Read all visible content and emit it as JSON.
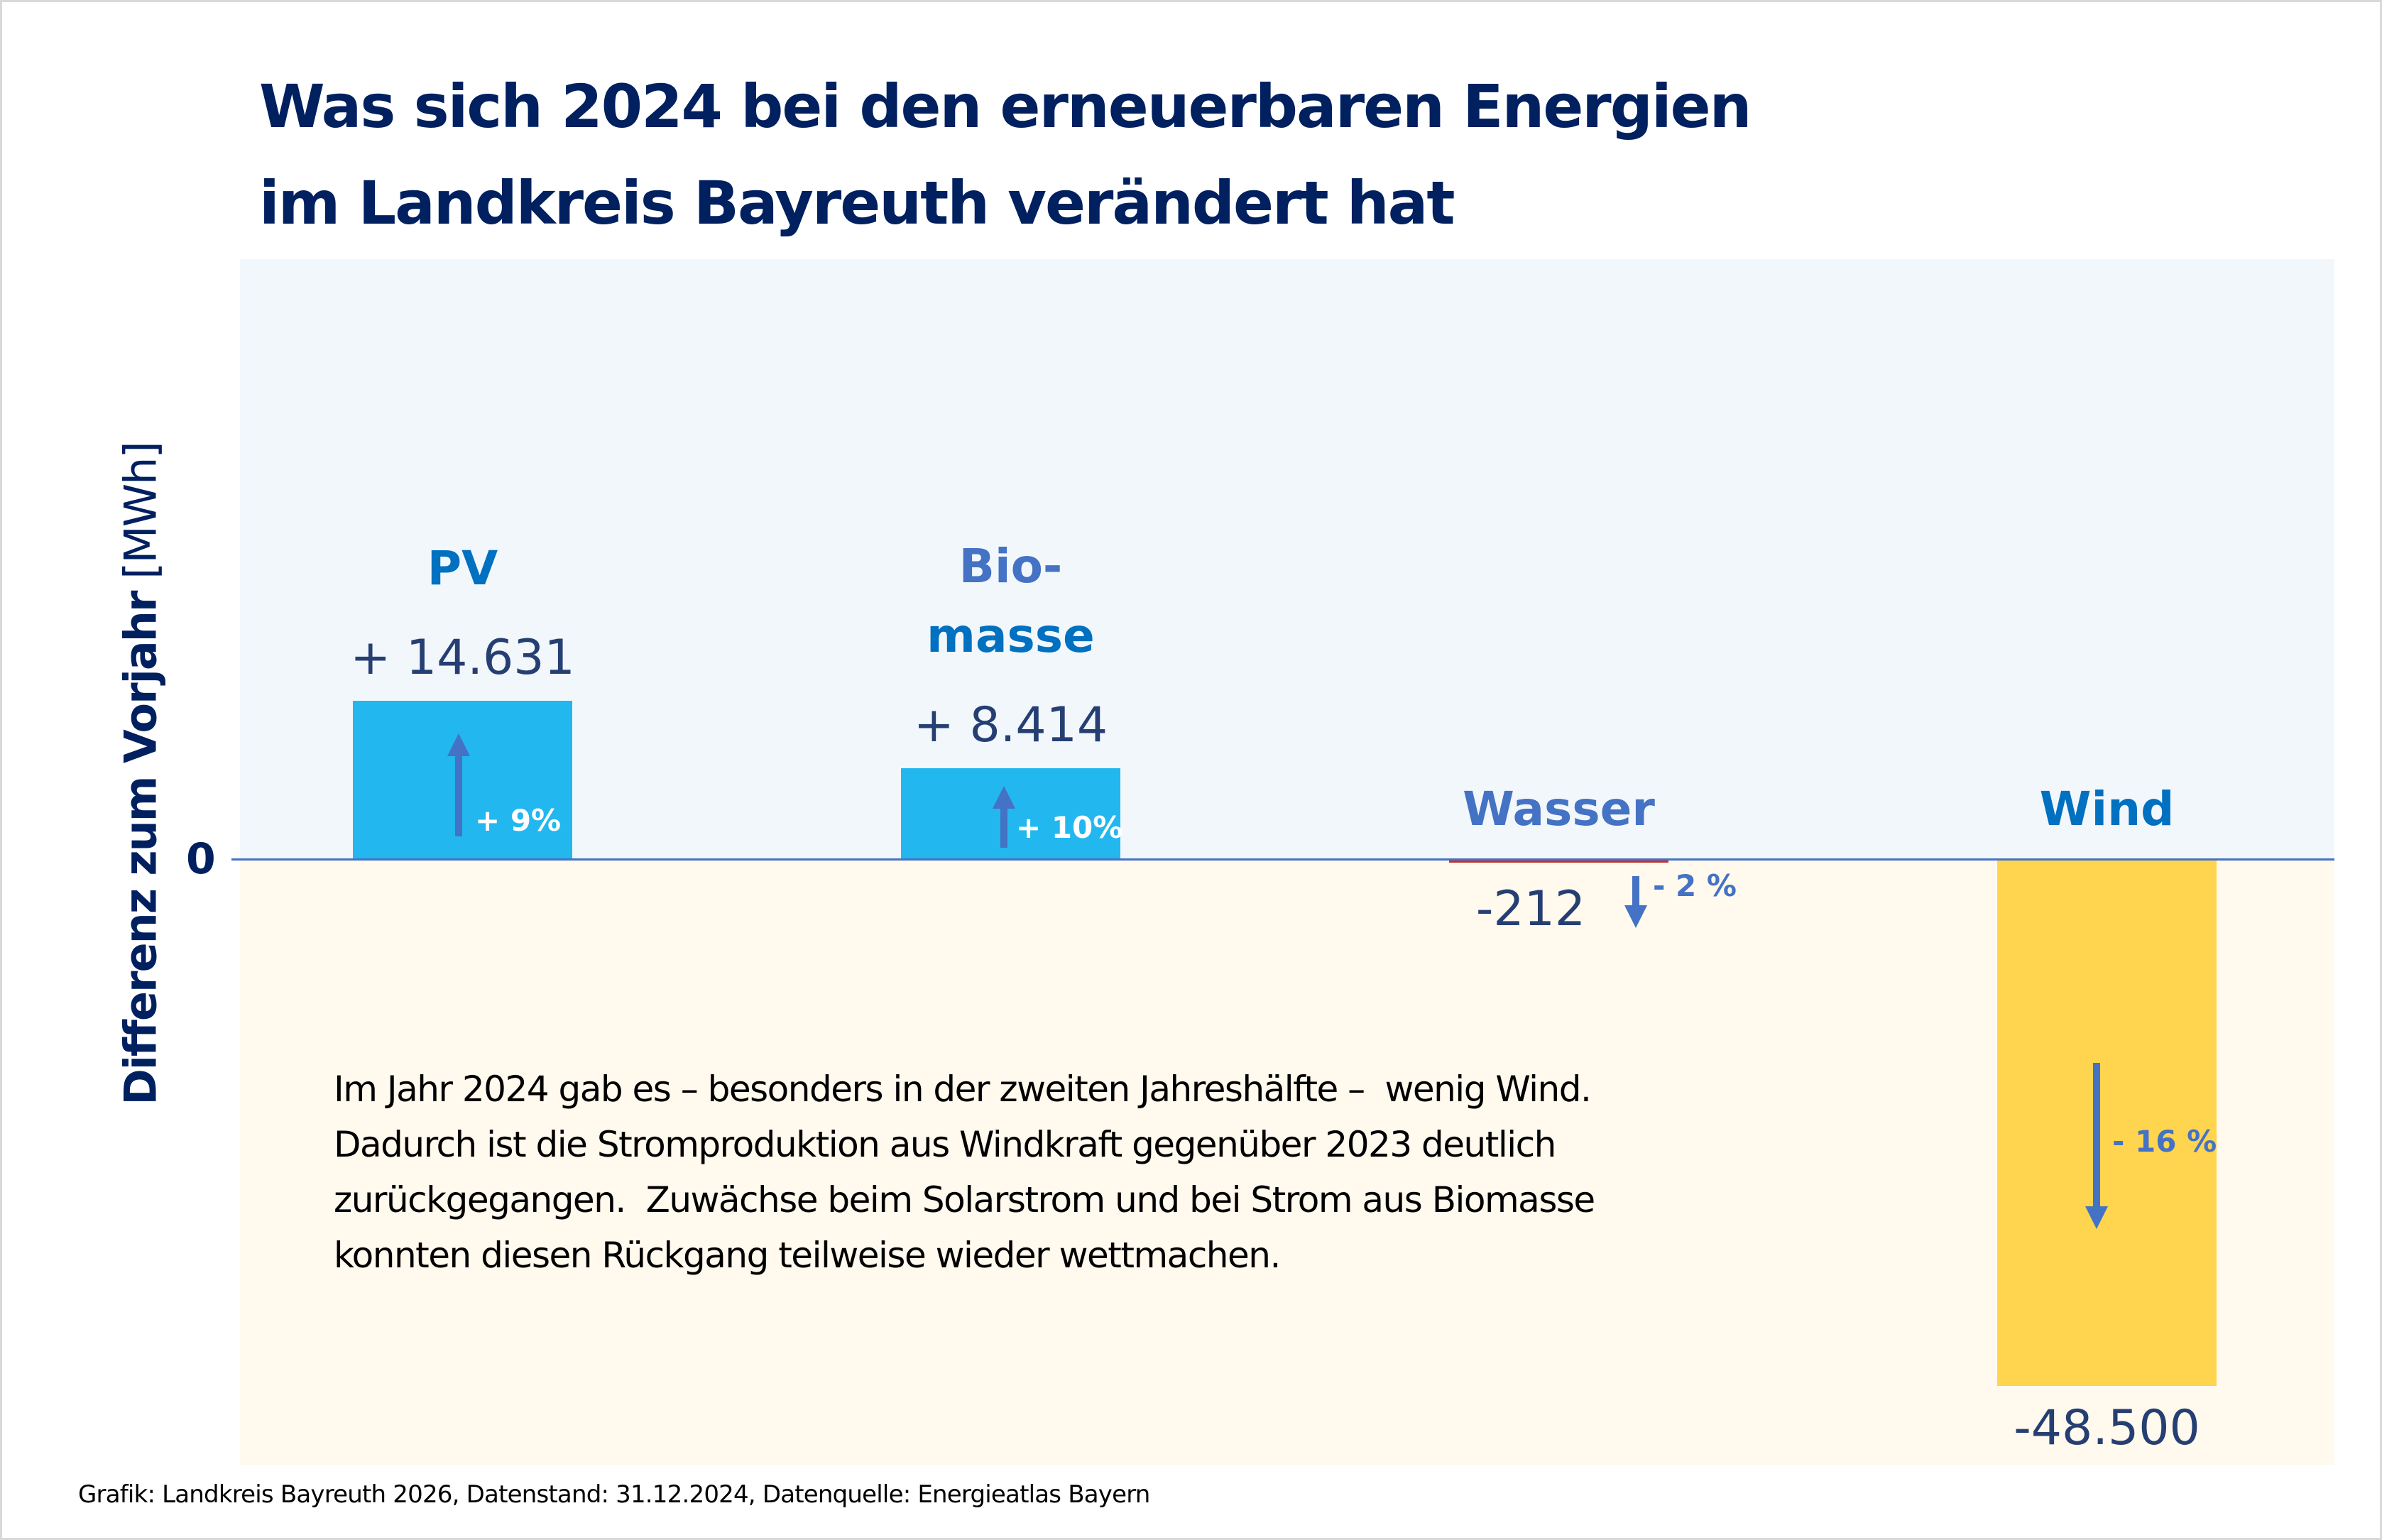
{
  "title": {
    "line1": "Was sich 2024 bei den erneuerbaren Energien",
    "line2": "im Landkreis Bayreuth verändert hat"
  },
  "chart_data": {
    "type": "bar",
    "title": "Was sich 2024 bei den erneuerbaren Energien im Landkreis Bayreuth verändert hat",
    "xlabel": "",
    "ylabel": "Differenz zum Vorjahr [MWh]",
    "ylabel_bold_part": "Differenz zum Vorjahr",
    "ylabel_unit_part": " [MWh]",
    "zero_tick_label": "0",
    "ylim": [
      -54000,
      55000
    ],
    "grid": false,
    "legend": "none",
    "categories": [
      "PV",
      "Biomasse",
      "Wasser",
      "Wind"
    ],
    "values": [
      14631,
      8414,
      -212,
      -48500
    ],
    "value_labels": [
      "+ 14.631",
      "+ 8.414",
      "-212",
      "-48.500"
    ],
    "percent_change": [
      9,
      10,
      -2,
      -16
    ],
    "percent_labels": [
      "+ 9%",
      "+ 10%",
      "- 2 %",
      "- 16 %"
    ],
    "category_labels": [
      {
        "lines": [
          "PV"
        ]
      },
      {
        "lines": [
          "Bio-",
          "masse"
        ]
      },
      {
        "lines": [
          "Wasser"
        ]
      },
      {
        "lines": [
          "Wind"
        ]
      }
    ],
    "annotation": [
      "Im Jahr 2024 gab es – besonders in der zweiten Jahreshälfte –  wenig Wind.",
      "Dadurch ist die Stromproduktion aus Windkraft gegenüber 2023 deutlich",
      "zurückgegangen.  Zuwächse beim Solarstrom und bei Strom aus Biomasse",
      "konnten diesen Rückgang teilweise wieder wettmachen."
    ]
  },
  "colors": {
    "title": "#002060",
    "positive_bar": "#22B7EF",
    "wind_bar": "#FFD54F",
    "wasser_bar": "#C9302C",
    "arrow": "#4472C4",
    "category_pv": "#0070C0",
    "category_bio_line1": "#4472C4",
    "category_bio_line2": "#0070C0",
    "category_wasser": "#4472C4",
    "category_wind": "#0070C0",
    "value_text": "#263F73"
  },
  "footer": "Grafik: Landkreis Bayreuth 2026, Datenstand: 31.12.2024, Datenquelle: Energieatlas Bayern"
}
